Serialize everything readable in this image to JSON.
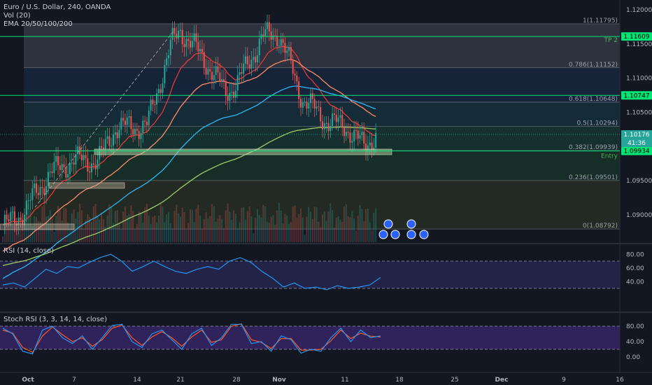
{
  "legend": {
    "title": "Euro / U.S. Dollar, 240, OANDA",
    "vol": "Vol (20)",
    "ema": "EMA 20/50/100/200",
    "rsi": "RSI (14, close)",
    "stoch": "Stoch RSI (3, 3, 14, 14, close)"
  },
  "colors": {
    "bg": "#131722",
    "up": "#26a69a",
    "down": "#ef5350",
    "ema20": "#e53935",
    "ema50": "#ff8a65",
    "ema100": "#29b6f6",
    "ema200": "#9ccc65",
    "green_line": "#00e676",
    "rsi": "#2196f3",
    "stoch_k": "#2196f3",
    "stoch_d": "#ff5722"
  },
  "chart_data": [
    {
      "type": "candlestick",
      "title": "Euro / U.S. Dollar, 240, OANDA",
      "x_ticks": [
        "Oct",
        "7",
        "14",
        "21",
        "28",
        "Nov",
        "11",
        "18",
        "25",
        "Dec",
        "9",
        "16"
      ],
      "y_ticks": [
        "1.12000",
        "1.11500",
        "1.11000",
        "1.10500",
        "1.10000",
        "1.09500",
        "1.09000"
      ],
      "y_range": [
        1.0862,
        1.1223
      ],
      "price_key_points": [
        {
          "x": "Sep 30",
          "close": 1.0885
        },
        {
          "x": "Oct 1",
          "close": 1.0905
        },
        {
          "x": "Oct 3",
          "close": 1.096
        },
        {
          "x": "Oct 7",
          "close": 1.098
        },
        {
          "x": "Oct 9",
          "close": 1.0978
        },
        {
          "x": "Oct 11",
          "close": 1.1028
        },
        {
          "x": "Oct 15",
          "close": 1.103
        },
        {
          "x": "Oct 18",
          "close": 1.115
        },
        {
          "x": "Oct 21",
          "close": 1.117
        },
        {
          "x": "Oct 23",
          "close": 1.113
        },
        {
          "x": "Oct 25",
          "close": 1.108
        },
        {
          "x": "Oct 28",
          "close": 1.109
        },
        {
          "x": "Oct 30",
          "close": 1.116
        },
        {
          "x": "Nov 1",
          "close": 1.1165
        },
        {
          "x": "Nov 4",
          "close": 1.107
        },
        {
          "x": "Nov 7",
          "close": 1.1035
        },
        {
          "x": "Nov 11",
          "close": 1.103
        },
        {
          "x": "Nov 13",
          "close": 1.1
        },
        {
          "x": "Nov 15",
          "close": 1.102
        }
      ],
      "fib_levels": [
        {
          "label": "1(1.11795)",
          "value": 1.11795
        },
        {
          "label": "0.786(1.11152)",
          "value": 1.11152
        },
        {
          "label": "0.618(1.10648)",
          "value": 1.10648
        },
        {
          "label": "0.5(1.10294)",
          "value": 1.10294
        },
        {
          "label": "0.382(1.09939)",
          "value": 1.09939
        },
        {
          "label": "0.236(1.09501)",
          "value": 1.09501
        },
        {
          "label": "0(1.08792)",
          "value": 1.08792
        }
      ],
      "hlines": [
        {
          "label": "TP 2",
          "value": 1.11609,
          "tag": "1.11609"
        },
        {
          "label": "",
          "value": 1.10747,
          "tag": "1.10747"
        },
        {
          "label": "Entry",
          "value": 1.09934,
          "tag": "1.09934"
        }
      ],
      "price_tag": {
        "value": "1.10176",
        "countdown": "41:36"
      }
    },
    {
      "type": "line",
      "title": "RSI (14, close)",
      "y_ticks": [
        "80.00",
        "60.00",
        "40.00"
      ],
      "bands": [
        70,
        30
      ],
      "series": [
        {
          "values": [
            35,
            38,
            32,
            45,
            58,
            52,
            62,
            60,
            68,
            75,
            80,
            70,
            55,
            62,
            70,
            62,
            55,
            52,
            58,
            62,
            58,
            70,
            75,
            68,
            55,
            45,
            32,
            38,
            30,
            32,
            28,
            34,
            30,
            32,
            35,
            46
          ]
        }
      ]
    },
    {
      "type": "line",
      "title": "Stoch RSI (3, 3, 14, 14, close)",
      "y_ticks": [
        "80.00",
        "40.00",
        "0.00"
      ],
      "bands": [
        80,
        20
      ],
      "series": [
        {
          "values": [
            75,
            60,
            15,
            8,
            70,
            80,
            50,
            35,
            55,
            20,
            50,
            82,
            85,
            40,
            25,
            60,
            70,
            45,
            20,
            60,
            75,
            30,
            50,
            85,
            85,
            35,
            40,
            15,
            55,
            45,
            10,
            20,
            15,
            50,
            75,
            40,
            70,
            50,
            55
          ]
        },
        {
          "values": [
            70,
            62,
            25,
            12,
            55,
            78,
            58,
            40,
            50,
            28,
            45,
            75,
            83,
            50,
            30,
            52,
            66,
            50,
            28,
            52,
            70,
            38,
            45,
            80,
            86,
            45,
            38,
            22,
            48,
            48,
            18,
            18,
            20,
            42,
            70,
            48,
            62,
            54,
            52
          ]
        }
      ]
    }
  ]
}
